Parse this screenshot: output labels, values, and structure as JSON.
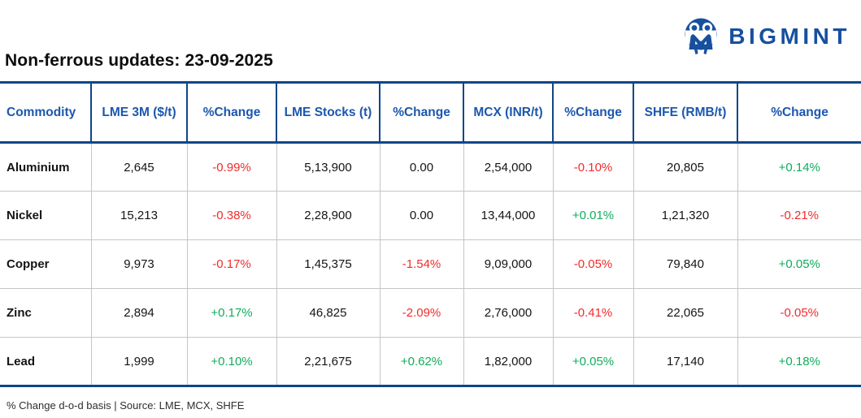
{
  "brand": {
    "name": "BIGMINT",
    "color": "#17509e"
  },
  "title": "Non-ferrous updates: 23-09-2025",
  "footer": {
    "note": "% Change d-o-d basis | Source: LME, MCX, SHFE"
  },
  "colors": {
    "header_text": "#1b57ae",
    "border": "#0d4689",
    "positive": "#10ac5c",
    "negative": "#f22b2b",
    "row_divider": "#c5c5c5",
    "body_text": "#141414"
  },
  "chart_data": {
    "type": "table",
    "title": "Non-ferrous updates: 23-09-2025",
    "columns": [
      "Commodity",
      "LME 3M ($/t)",
      "%Change",
      "LME Stocks (t)",
      "%Change",
      "MCX (INR/t)",
      "%Change",
      "SHFE (RMB/t)",
      "%Change"
    ],
    "rows": [
      [
        "Aluminium",
        "2,645",
        "-0.99%",
        "5,13,900",
        "0.00",
        "2,54,000",
        "-0.10%",
        "20,805",
        "+0.14%"
      ],
      [
        "Nickel",
        "15,213",
        "-0.38%",
        "2,28,900",
        "0.00",
        "13,44,000",
        "+0.01%",
        "1,21,320",
        "-0.21%"
      ],
      [
        "Copper",
        "9,973",
        "-0.17%",
        "1,45,375",
        "-1.54%",
        "9,09,000",
        "-0.05%",
        "79,840",
        "+0.05%"
      ],
      [
        "Zinc",
        "2,894",
        "+0.17%",
        "46,825",
        "-2.09%",
        "2,76,000",
        "-0.41%",
        "22,065",
        "-0.05%"
      ],
      [
        "Lead",
        "1,999",
        "+0.10%",
        "2,21,675",
        "+0.62%",
        "1,82,000",
        "+0.05%",
        "17,140",
        "+0.18%"
      ]
    ],
    "footnote": "% Change d-o-d basis | Source: LME, MCX, SHFE"
  }
}
